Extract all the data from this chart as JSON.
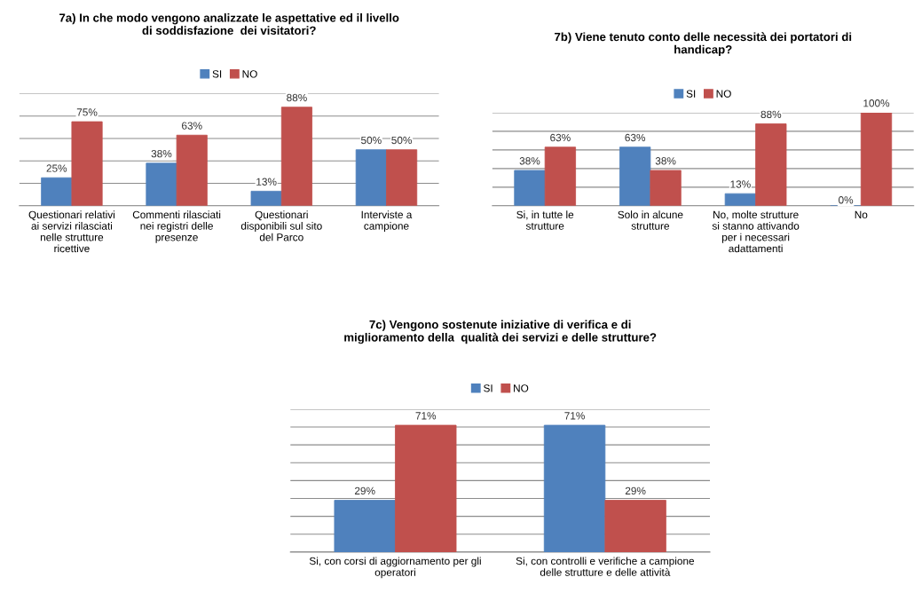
{
  "chart_data": [
    {
      "type": "bar",
      "title": "7a) In che modo vengono analizzate le aspettative ed il livello\ndi soddisfazione  dei visitatori?",
      "categories": [
        "Questionari relativi\nai servizi rilasciati\nnelle strutture\nricettive",
        "Commenti rilasciati\nnei registri delle\npresenze",
        "Questionari\ndisponibili sul sito\ndel Parco",
        "Interviste a\ncampione"
      ],
      "series": [
        {
          "name": "SI",
          "color": "#4f81bd",
          "values": [
            25,
            38,
            13,
            50
          ],
          "value_labels": [
            "25%",
            "38%",
            "13%",
            "50%"
          ]
        },
        {
          "name": "NO",
          "color": "#c0504d",
          "values": [
            75,
            63,
            88,
            50
          ],
          "value_labels": [
            "75%",
            "63%",
            "88%",
            "50%"
          ]
        }
      ],
      "ylim": [
        0,
        100
      ],
      "yticks": [
        {
          "value": 0,
          "label": null
        },
        {
          "value": 20,
          "label": null
        },
        {
          "value": 40,
          "label": null
        },
        {
          "value": 60,
          "label": null
        },
        {
          "value": 80,
          "label": null
        },
        {
          "value": 100,
          "label": null
        }
      ],
      "tick_labels": "x",
      "grid": "y",
      "legend": "top"
    },
    {
      "type": "bar",
      "title": "7b) Viene tenuto conto delle necessità dei portatori di\nhandicap?",
      "categories": [
        "Si, in tutte le\nstrutture",
        "Solo in alcune\nstrutture",
        "No, molte strutture\nsi stanno attivando\nper i necessari\nadattamenti",
        "No"
      ],
      "series": [
        {
          "name": "SI",
          "color": "#4f81bd",
          "values": [
            38,
            63,
            13,
            0
          ],
          "value_labels": [
            "38%",
            "63%",
            "13%",
            "0%"
          ]
        },
        {
          "name": "NO",
          "color": "#c0504d",
          "values": [
            63,
            38,
            88,
            100
          ],
          "value_labels": [
            "63%",
            "38%",
            "88%",
            "100%"
          ]
        }
      ],
      "ylim": [
        0,
        100
      ],
      "yticks": [
        {
          "value": 0,
          "label": null
        },
        {
          "value": 20,
          "label": null
        },
        {
          "value": 40,
          "label": null
        },
        {
          "value": 60,
          "label": null
        },
        {
          "value": 80,
          "label": null
        },
        {
          "value": 100,
          "label": null
        }
      ],
      "tick_labels": "x",
      "grid": "y",
      "legend": "top"
    },
    {
      "type": "bar",
      "title": "7c) Vengono sostenute iniziative di verifica e di\nmiglioramento della  qualità dei servizi e delle strutture?",
      "categories": [
        "Si, con corsi di aggiornamento per gli\noperatori",
        "Si, con controlli e verifiche a campione\ndelle strutture e delle attività"
      ],
      "series": [
        {
          "name": "SI",
          "color": "#4f81bd",
          "values": [
            29,
            71
          ],
          "value_labels": [
            "29%",
            "71%"
          ]
        },
        {
          "name": "NO",
          "color": "#c0504d",
          "values": [
            71,
            29
          ],
          "value_labels": [
            "71%",
            "29%"
          ]
        }
      ],
      "ylim": [
        0,
        80
      ],
      "yticks": [
        {
          "value": 0,
          "label": null
        },
        {
          "value": 10,
          "label": null
        },
        {
          "value": 20,
          "label": null
        },
        {
          "value": 30,
          "label": null
        },
        {
          "value": 40,
          "label": null
        },
        {
          "value": 50,
          "label": null
        },
        {
          "value": 60,
          "label": null
        },
        {
          "value": 70,
          "label": null
        },
        {
          "value": 80,
          "label": null
        }
      ],
      "tick_labels": "x",
      "grid": "y",
      "legend": "top"
    }
  ]
}
